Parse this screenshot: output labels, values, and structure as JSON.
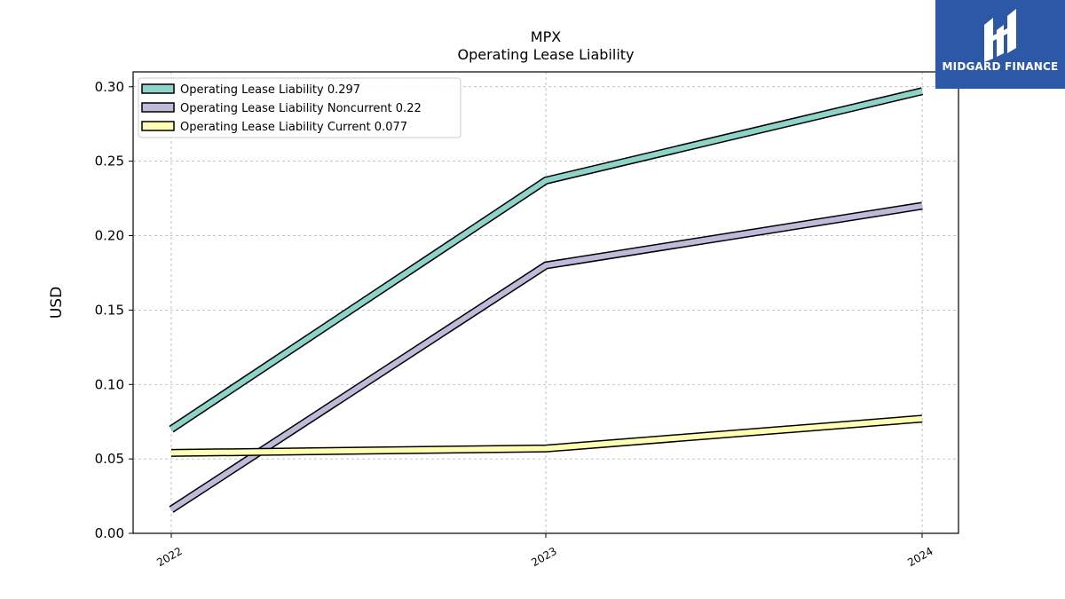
{
  "chart_data": {
    "type": "line",
    "title": "MPX",
    "subtitle": "Operating Lease Liability",
    "xlabel": "",
    "ylabel": "USD",
    "x": [
      "2022",
      "2023",
      "2024"
    ],
    "ylim": [
      0,
      0.31
    ],
    "yticks": [
      "0.00",
      "0.05",
      "0.10",
      "0.15",
      "0.20",
      "0.25",
      "0.30"
    ],
    "grid": true,
    "legend_position": "top-left",
    "series": [
      {
        "name": "Operating Lease Liability",
        "legend_label": "Operating Lease Liability  0.297",
        "values": [
          0.07,
          0.237,
          0.297
        ],
        "color": "#8dd3c7"
      },
      {
        "name": "Operating Lease Liability Noncurrent",
        "legend_label": "Operating Lease Liability Noncurrent  0.22",
        "values": [
          0.016,
          0.18,
          0.22
        ],
        "color": "#bebada"
      },
      {
        "name": "Operating Lease Liability Current",
        "legend_label": "Operating Lease Liability Current  0.077",
        "values": [
          0.054,
          0.057,
          0.077
        ],
        "color": "#ffffb3"
      }
    ]
  },
  "logo": {
    "text": "MIDGARD FINANCE",
    "background": "#2c58a6",
    "icon": "midgard-logo-icon"
  }
}
